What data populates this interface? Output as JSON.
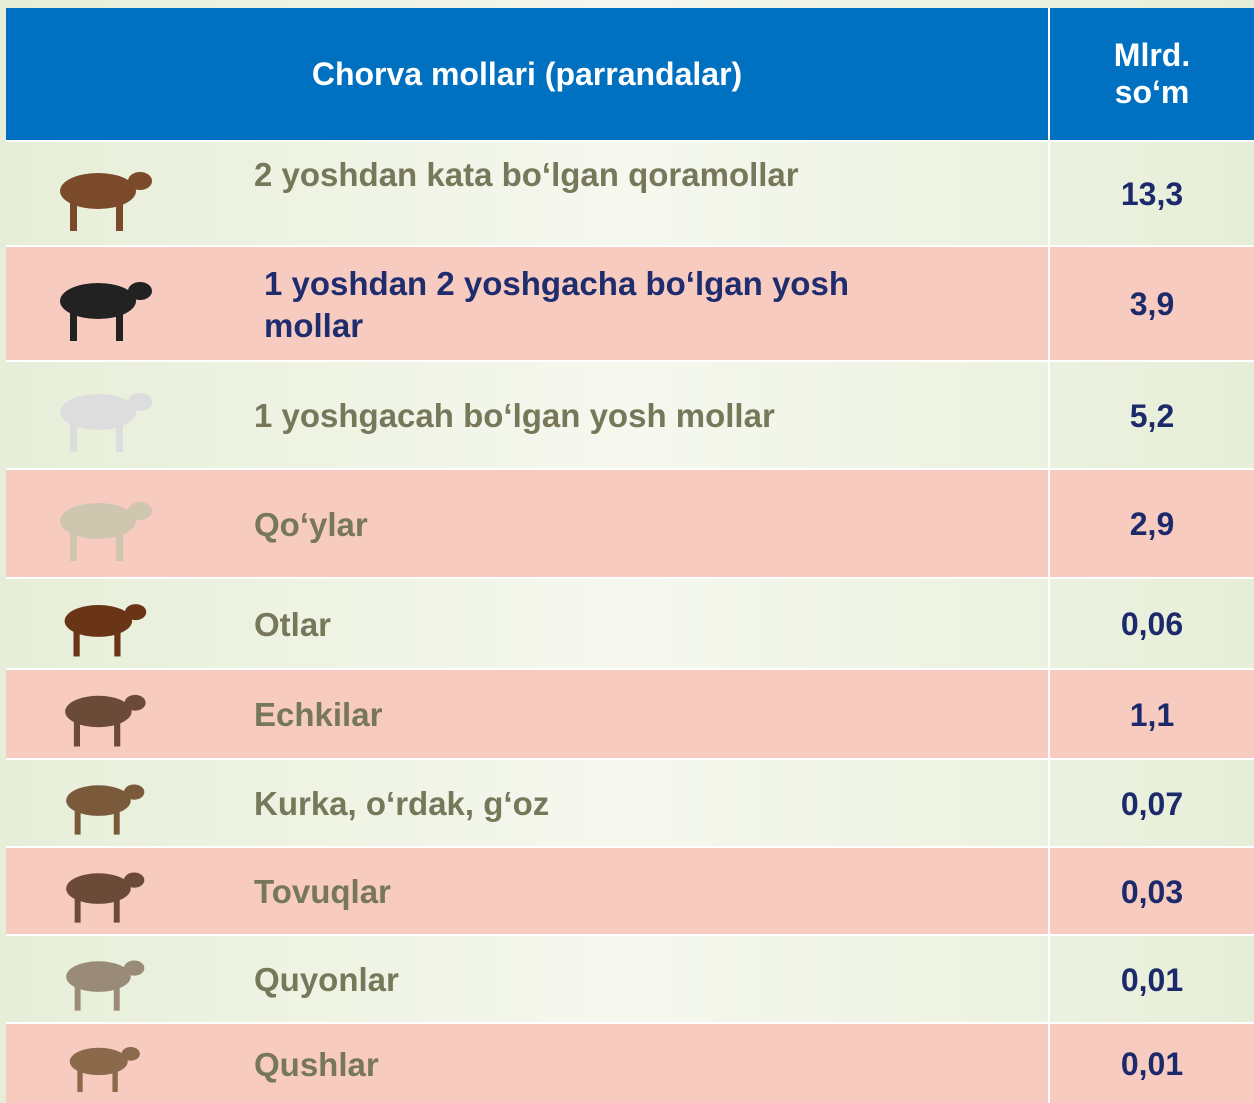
{
  "header": {
    "columns": [
      "Chorva mollari (parrandalar)",
      "Mlrd. so‘m"
    ]
  },
  "table": {
    "rows": [
      [
        "2 yoshdan kata bo‘lgan qoramollar",
        "13,3"
      ],
      [
        "1 yoshdan 2 yoshgacha bo‘lgan yosh mollar",
        "3,9"
      ],
      [
        "1 yoshgacah bo‘lgan yosh mollar",
        "5,2"
      ],
      [
        "Qo‘ylar",
        "2,9"
      ],
      [
        "Otlar",
        "0,06"
      ],
      [
        "Echkilar",
        "1,1"
      ],
      [
        "Kurka, o‘rdak, g‘oz",
        "0,07"
      ],
      [
        "Tovuqlar",
        "0,03"
      ],
      [
        "Quyonlar",
        "0,01"
      ],
      [
        "Qushlar",
        "0,01"
      ]
    ]
  }
}
